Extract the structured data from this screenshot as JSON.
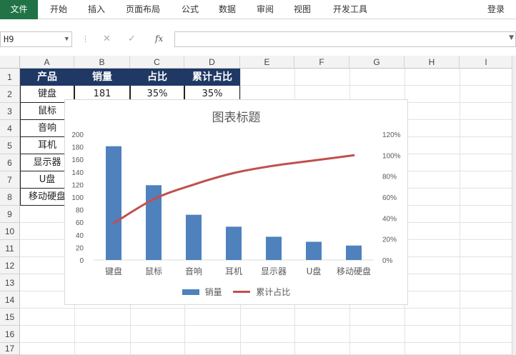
{
  "ribbon": {
    "tabs": [
      "文件",
      "开始",
      "插入",
      "页面布局",
      "公式",
      "数据",
      "审阅",
      "视图",
      "开发工具"
    ],
    "login": "登录"
  },
  "formula_bar": {
    "name_box": "H9",
    "fx_label": "fx",
    "formula": ""
  },
  "sheet": {
    "columns": [
      "A",
      "B",
      "C",
      "D",
      "E",
      "F",
      "G",
      "H",
      "I"
    ],
    "rows": [
      "1",
      "2",
      "3",
      "4",
      "5",
      "6",
      "7",
      "8",
      "9",
      "10",
      "11",
      "12",
      "13",
      "14",
      "15",
      "16",
      "17"
    ],
    "table_header": [
      "产品",
      "销量",
      "占比",
      "累计占比"
    ],
    "row2": [
      "键盘",
      "181",
      "35%",
      "35%"
    ],
    "products": [
      "鼠标",
      "音响",
      "耳机",
      "显示器",
      "U盘",
      "移动硬盘"
    ]
  },
  "colors": {
    "header_fill": "#1f3864",
    "bar": "#4f81bd",
    "line": "#c0504d",
    "file_tab": "#217346"
  },
  "chart_data": {
    "type": "bar",
    "title": "图表标题",
    "categories": [
      "键盘",
      "鼠标",
      "音响",
      "耳机",
      "显示器",
      "U盘",
      "移动硬盘"
    ],
    "series": [
      {
        "name": "销量",
        "type": "bar",
        "axis": "left",
        "values": [
          181,
          119,
          72,
          53,
          37,
          29,
          23
        ]
      },
      {
        "name": "累计占比",
        "type": "line",
        "axis": "right",
        "values": [
          35,
          58,
          72,
          83,
          90,
          95,
          100
        ]
      }
    ],
    "y_left": {
      "min": 0,
      "max": 200,
      "step": 20,
      "ticks": [
        "0",
        "20",
        "40",
        "60",
        "80",
        "100",
        "120",
        "140",
        "160",
        "180",
        "200"
      ]
    },
    "y_right": {
      "min": 0,
      "max": 120,
      "step": 20,
      "ticks": [
        "0%",
        "20%",
        "40%",
        "60%",
        "80%",
        "100%",
        "120%"
      ]
    },
    "legend": [
      "销量",
      "累计占比"
    ],
    "legend_position": "bottom",
    "grid": false
  }
}
